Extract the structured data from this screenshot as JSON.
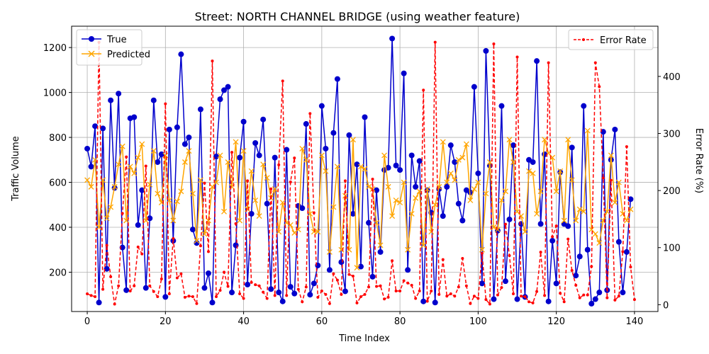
{
  "chart_data": {
    "type": "line",
    "title": "Street: NORTH CHANNEL BRIDGE (using weather feature)",
    "xlabel": "Time Index",
    "ylabel": "Traffic Volume",
    "y2label": "Error Rate (%)",
    "xlim": [
      -4,
      146
    ],
    "ylim": [
      25,
      1295
    ],
    "y2lim": [
      -12,
      488
    ],
    "xticks": [
      0,
      20,
      40,
      60,
      80,
      100,
      120,
      140
    ],
    "yticks": [
      200,
      400,
      600,
      800,
      1000,
      1200
    ],
    "y2ticks": [
      0,
      100,
      200,
      300,
      400
    ],
    "grid": true,
    "legend_left": [
      "True",
      "Predicted"
    ],
    "legend_right": [
      "Error Rate"
    ],
    "colors": {
      "true": "#0000cc",
      "predicted": "#ffa500",
      "error": "#ff0000"
    },
    "series": [
      {
        "name": "True",
        "axis": "left",
        "values": [
          750,
          670,
          850,
          65,
          840,
          215,
          965,
          575,
          995,
          310,
          120,
          885,
          890,
          410,
          565,
          130,
          440,
          965,
          690,
          725,
          90,
          835,
          340,
          845,
          1170,
          770,
          800,
          390,
          330,
          925,
          130,
          195,
          65,
          715,
          970,
          1010,
          1025,
          110,
          320,
          710,
          870,
          145,
          460,
          775,
          720,
          880,
          505,
          125,
          710,
          110,
          70,
          745,
          135,
          105,
          495,
          485,
          860,
          100,
          150,
          230,
          940,
          750,
          210,
          820,
          1060,
          245,
          115,
          810,
          460,
          680,
          225,
          890,
          420,
          180,
          565,
          290,
          655,
          665,
          1240,
          675,
          655,
          1085,
          210,
          720,
          580,
          695,
          70,
          565,
          465,
          65,
          570,
          450,
          580,
          765,
          690,
          505,
          430,
          565,
          555,
          1025,
          640,
          150,
          1185,
          675,
          80,
          385,
          940,
          160,
          435,
          765,
          80,
          415,
          90,
          700,
          690,
          1140,
          415,
          725,
          70,
          340,
          150,
          645,
          415,
          405,
          755,
          185,
          270,
          940,
          300,
          60,
          80,
          110,
          825,
          120,
          700,
          835,
          335,
          110,
          290,
          525
        ]
      },
      {
        "name": "Predicted",
        "axis": "left",
        "values": [
          610,
          580,
          700,
          400,
          610,
          440,
          490,
          580,
          680,
          760,
          430,
          670,
          640,
          710,
          770,
          430,
          590,
          740,
          550,
          510,
          720,
          520,
          430,
          515,
          560,
          690,
          740,
          550,
          340,
          610,
          370,
          430,
          580,
          600,
          720,
          470,
          690,
          580,
          780,
          430,
          740,
          480,
          650,
          520,
          450,
          680,
          620,
          530,
          570,
          380,
          510,
          420,
          410,
          375,
          390,
          750,
          700,
          460,
          380,
          380,
          720,
          650,
          290,
          490,
          670,
          300,
          540,
          300,
          790,
          220,
          670,
          660,
          580,
          570,
          420,
          320,
          720,
          580,
          450,
          520,
          510,
          600,
          300,
          460,
          530,
          560,
          320,
          570,
          380,
          500,
          580,
          780,
          600,
          640,
          610,
          700,
          710,
          770,
          520,
          570,
          600,
          300,
          550,
          690,
          400,
          390,
          520,
          560,
          790,
          690,
          470,
          450,
          380,
          650,
          640,
          460,
          560,
          790,
          730,
          710,
          560,
          650,
          430,
          790,
          610,
          430,
          480,
          470,
          830,
          390,
          370,
          330,
          430,
          470,
          720,
          510,
          600,
          460,
          430,
          480
        ]
      },
      {
        "name": "Error Rate",
        "axis": "right",
        "values": [
          19,
          16,
          14,
          460,
          27,
          104,
          49,
          1,
          33,
          160,
          259,
          24,
          33,
          101,
          89,
          243,
          33,
          23,
          14,
          45,
          352,
          19,
          116,
          47,
          54,
          13,
          15,
          14,
          2,
          103,
          213,
          93,
          427,
          14,
          25,
          57,
          32,
          267,
          142,
          19,
          11,
          217,
          39,
          35,
          33,
          22,
          11,
          203,
          16,
          245,
          392,
          16,
          215,
          257,
          27,
          5,
          31,
          335,
          161,
          13,
          24,
          18,
          2,
          54,
          43,
          18,
          217,
          53,
          50,
          3,
          14,
          18,
          31,
          220,
          32,
          33,
          10,
          13,
          77,
          24,
          24,
          42,
          38,
          34,
          11,
          24,
          376,
          6,
          24,
          460,
          18,
          79,
          15,
          19,
          15,
          31,
          81,
          33,
          2,
          15,
          11,
          90,
          9,
          1,
          457,
          17,
          30,
          141,
          86,
          19,
          434,
          15,
          14,
          5,
          3,
          23,
          92,
          16,
          424,
          119,
          138,
          20,
          5,
          115,
          60,
          34,
          12,
          17,
          17,
          67,
          424,
          382,
          222,
          12,
          218,
          8,
          15,
          93,
          277,
          66,
          9
        ]
      }
    ]
  }
}
